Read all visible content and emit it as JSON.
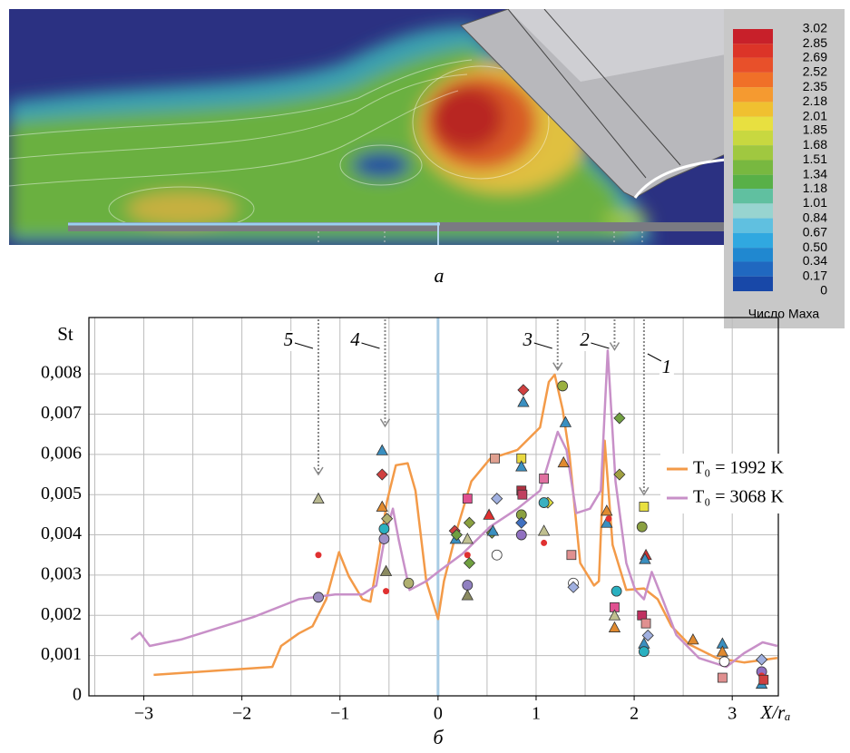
{
  "panel_labels": [
    "а",
    "б"
  ],
  "colorbar": {
    "label": "Число Маха",
    "lim": [
      0,
      3.02
    ],
    "ticks": [
      3.02,
      2.85,
      2.69,
      2.52,
      2.35,
      2.18,
      2.01,
      1.85,
      1.68,
      1.51,
      1.34,
      1.18,
      1.01,
      0.84,
      0.67,
      {
        "value": 0.5,
        "label": "0.50"
      },
      0.34,
      0.17,
      0
    ],
    "colors": [
      "#c8202a",
      "#dc3428",
      "#e8502a",
      "#f07028",
      "#f59a30",
      "#f0c030",
      "#e8e040",
      "#c8d840",
      "#a0c840",
      "#78b840",
      "#58b048",
      "#60c0a0",
      "#98d4d0",
      "#60c0e0",
      "#30a8e0",
      "#2088d0",
      "#2068c0",
      "#1848a8"
    ]
  },
  "chart_data": {
    "type": "line",
    "y_label": "St",
    "x_label": "X/rₐ",
    "xlim": [
      -3.56,
      3.47
    ],
    "ylim": [
      0,
      0.0094
    ],
    "xticks": [
      {
        "value": -3,
        "label": "−3"
      },
      {
        "value": -2,
        "label": "−2"
      },
      {
        "value": -1,
        "label": "−1"
      },
      0,
      1,
      2,
      3
    ],
    "xgrid": [
      -3.5,
      -3,
      -2.5,
      -2,
      -1.5,
      -1,
      -0.5,
      0.5,
      1,
      1.5,
      2,
      2.5,
      3
    ],
    "yticks": [
      0,
      {
        "value": 0.001,
        "label": "0,001"
      },
      {
        "value": 0.002,
        "label": "0,002"
      },
      {
        "value": 0.003,
        "label": "0,003"
      },
      {
        "value": 0.004,
        "label": "0,004"
      },
      {
        "value": 0.005,
        "label": "0,005"
      },
      {
        "value": 0.006,
        "label": "0,006"
      },
      {
        "value": 0.007,
        "label": "0,007"
      },
      {
        "value": 0.008,
        "label": "0,008"
      }
    ],
    "grid": true,
    "legend": "right",
    "zero_line_color": "#a8cce4",
    "series": [
      {
        "name": "T₀ = 1992 K",
        "color": "#f39a48",
        "x": [
          -2.9,
          -1.69,
          -1.6,
          -1.42,
          -1.28,
          -1.14,
          -1.01,
          -0.91,
          -0.77,
          -0.69,
          -0.62,
          -0.52,
          -0.43,
          -0.31,
          -0.23,
          -0.12,
          0,
          0.06,
          0.2,
          0.34,
          0.53,
          0.81,
          1.04,
          1.13,
          1.19,
          1.27,
          1.34,
          1.45,
          1.59,
          1.64,
          1.7,
          1.78,
          1.92,
          2.1,
          2.24,
          2.38,
          2.56,
          2.84,
          3.12,
          3.46
        ],
        "values": [
          0.00052,
          0.00072,
          0.00124,
          0.00155,
          0.00173,
          0.0024,
          0.00357,
          0.00297,
          0.0024,
          0.00234,
          0.0033,
          0.00483,
          0.00573,
          0.00578,
          0.0051,
          0.00285,
          0.00191,
          0.00285,
          0.0042,
          0.00533,
          0.00589,
          0.00611,
          0.00667,
          0.0078,
          0.00798,
          0.00712,
          0.006,
          0.0033,
          0.00274,
          0.00285,
          0.00634,
          0.00375,
          0.00263,
          0.00267,
          0.0024,
          0.00173,
          0.00128,
          0.00094,
          0.00083,
          0.00094
        ]
      },
      {
        "name": "T₀ = 3068 K",
        "color": "#c890c8",
        "x": [
          -3.13,
          -3.04,
          -2.94,
          -2.62,
          -1.88,
          -1.42,
          -1.05,
          -0.77,
          -0.63,
          -0.54,
          -0.46,
          -0.4,
          -0.29,
          -0.12,
          0,
          0.25,
          0.53,
          0.81,
          1.04,
          1.22,
          1.31,
          1.41,
          1.55,
          1.66,
          1.73,
          1.81,
          1.92,
          2.01,
          2.1,
          2.18,
          2.29,
          2.43,
          2.66,
          2.94,
          3.12,
          3.31,
          3.46
        ],
        "values": [
          0.0014,
          0.00157,
          0.00124,
          0.0014,
          0.00196,
          0.0024,
          0.00252,
          0.00252,
          0.00274,
          0.00398,
          0.00465,
          0.00387,
          0.00263,
          0.00285,
          0.00308,
          0.00353,
          0.0042,
          0.00465,
          0.0051,
          0.00656,
          0.00611,
          0.00454,
          0.00465,
          0.0051,
          0.00858,
          0.00533,
          0.0033,
          0.00263,
          0.0024,
          0.00308,
          0.0024,
          0.00151,
          0.00094,
          0.00072,
          0.00106,
          0.00133,
          0.00124
        ]
      }
    ],
    "markers": {
      "x": [
        -1.22,
        -1.22,
        -1.22,
        -0.57,
        -0.57,
        -0.57,
        -0.55,
        -0.55,
        -0.52,
        -0.53,
        -0.53,
        -0.3,
        0.17,
        0.18,
        0.19,
        0.3,
        0.3,
        0.32,
        0.3,
        0.32,
        0.3,
        0.3,
        0.58,
        0.6,
        0.55,
        0.52,
        0.6,
        0.56,
        0.87,
        0.87,
        0.85,
        0.85,
        0.85,
        0.86,
        0.85,
        0.85,
        0.85,
        1.08,
        1.12,
        1.08,
        1.08,
        1.08,
        1.27,
        1.3,
        1.28,
        1.36,
        1.38,
        1.38,
        1.72,
        1.72,
        1.74,
        1.85,
        1.85,
        1.82,
        1.8,
        1.8,
        1.8,
        2.1,
        2.08,
        2.12,
        2.11,
        2.08,
        2.12,
        2.1,
        2.1,
        2.14,
        2.6,
        2.9,
        2.9,
        2.92,
        2.9,
        3.3,
        3.3,
        3.3,
        3.3,
        3.32
      ],
      "y": [
        0.0049,
        0.0035,
        0.00245,
        0.0061,
        0.0055,
        0.0047,
        0.00415,
        0.0039,
        0.0044,
        0.0031,
        0.0026,
        0.0028,
        0.0041,
        0.0039,
        0.004,
        0.0049,
        0.0035,
        0.0043,
        0.0039,
        0.0033,
        0.00275,
        0.0025,
        0.0059,
        0.0049,
        0.00405,
        0.0045,
        0.0035,
        0.0041,
        0.0076,
        0.0073,
        0.0059,
        0.0057,
        0.0051,
        0.005,
        0.0045,
        0.0043,
        0.004,
        0.0054,
        0.0048,
        0.0048,
        0.0041,
        0.0038,
        0.0077,
        0.0068,
        0.0058,
        0.0035,
        0.0028,
        0.0027,
        0.0046,
        0.0043,
        0.0044,
        0.0069,
        0.0055,
        0.0026,
        0.0022,
        0.002,
        0.0017,
        0.0047,
        0.0042,
        0.0035,
        0.0034,
        0.002,
        0.0018,
        0.0013,
        0.0011,
        0.0015,
        0.0014,
        0.0013,
        0.0011,
        0.00085,
        0.00045,
        0.0009,
        0.0006,
        0.0005,
        0.0003,
        0.0004
      ],
      "shape": [
        "triangle",
        "dot",
        "circle",
        "triangle",
        "diamond",
        "triangle",
        "circle",
        "circle",
        "diamond",
        "triangle",
        "dot",
        "circle",
        "diamond",
        "triangle",
        "diamond",
        "square",
        "dot",
        "diamond",
        "triangle",
        "diamond",
        "circle",
        "triangle",
        "square",
        "diamond",
        "diamond",
        "triangle",
        "circle",
        "triangle",
        "diamond",
        "triangle",
        "square",
        "triangle",
        "square",
        "square",
        "circle",
        "diamond",
        "circle",
        "square",
        "diamond",
        "circle",
        "triangle",
        "dot",
        "circle",
        "triangle",
        "triangle",
        "square",
        "circle",
        "diamond",
        "triangle",
        "triangle",
        "dot",
        "diamond",
        "diamond",
        "circle",
        "square",
        "triangle",
        "triangle",
        "square",
        "circle",
        "triangle",
        "triangle",
        "square",
        "square",
        "triangle",
        "circle",
        "diamond",
        "triangle",
        "triangle",
        "triangle",
        "circle",
        "square",
        "diamond",
        "circle",
        "dot",
        "triangle",
        "square"
      ],
      "color": [
        "#b8b890",
        "#e03030",
        "#9a8cc0",
        "#3a8fc0",
        "#d04040",
        "#e08a30",
        "#2ab0c0",
        "#a090c8",
        "#b0b070",
        "#8a8a60",
        "#e03030",
        "#b0b070",
        "#d04040",
        "#3a8fc0",
        "#70a040",
        "#e05090",
        "#e03030",
        "#8aa040",
        "#c0c090",
        "#70a040",
        "#9080c0",
        "#8a8a60",
        "#e0a090",
        "#a0b0e0",
        "#80a040",
        "#e03030",
        "#ffffff",
        "#3a8fc0",
        "#d04040",
        "#3a8fc0",
        "#e8d840",
        "#3a8fc0",
        "#b03040",
        "#c04060",
        "#8aa040",
        "#4070c0",
        "#9070c0",
        "#e070a0",
        "#e0e040",
        "#3ab0c0",
        "#c0c090",
        "#e03030",
        "#9ab040",
        "#3a8fc0",
        "#e08a30",
        "#e09090",
        "#ffffff",
        "#a0b0e0",
        "#e08a30",
        "#3a8fc0",
        "#e03030",
        "#70a040",
        "#a0a040",
        "#2ab0c0",
        "#e05090",
        "#c0c090",
        "#e08a30",
        "#e8e040",
        "#8aa040",
        "#d03030",
        "#3a8fc0",
        "#c03060",
        "#e09090",
        "#3a8fc0",
        "#2ab0c0",
        "#a0b0e0",
        "#e08a30",
        "#3a8fc0",
        "#e08a30",
        "#ffffff",
        "#e09090",
        "#a0b0e0",
        "#9070c0",
        "#e03030",
        "#3a8fc0",
        "#d04040"
      ]
    },
    "annotations": [
      {
        "label": "5",
        "x": -1.22,
        "y": 0.0055
      },
      {
        "label": "4",
        "x": -0.54,
        "y": 0.0067
      },
      {
        "label": "3",
        "x": 1.22,
        "y": 0.0081
      },
      {
        "label": "2",
        "x": 1.8,
        "y": 0.0086
      },
      {
        "label": "1",
        "x": 2.1,
        "y": 0.005
      }
    ]
  }
}
